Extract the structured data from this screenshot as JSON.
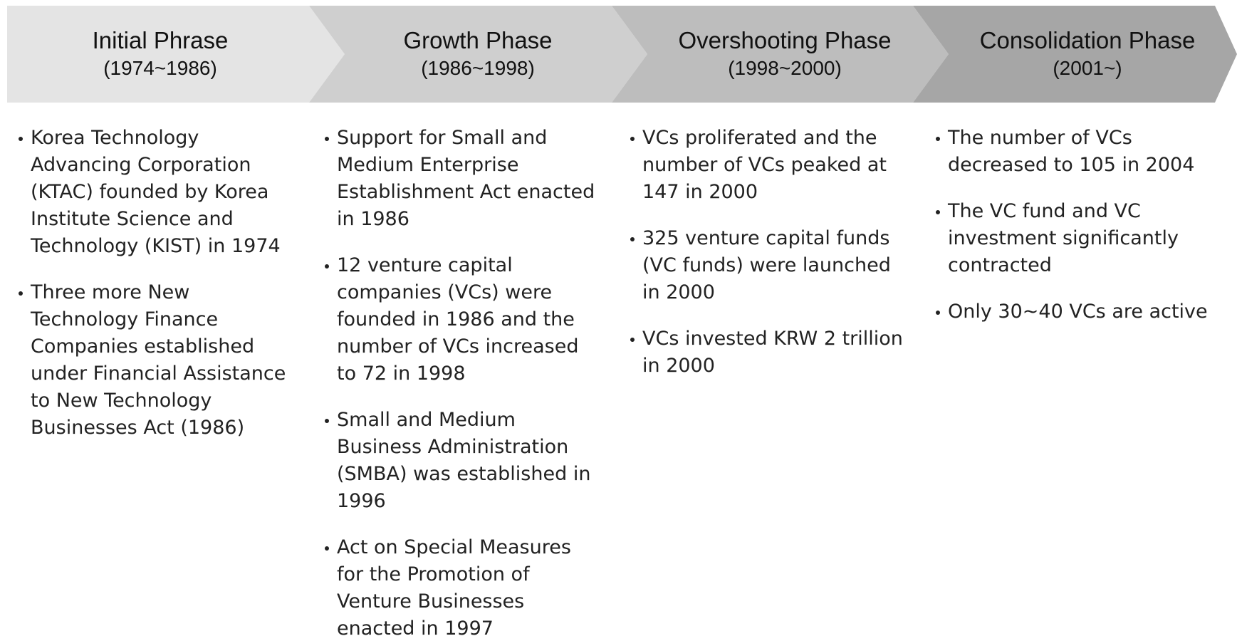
{
  "phases": [
    {
      "title": "Initial Phrase",
      "period": "(1974~1986)",
      "bullets": [
        "Korea Technology Advancing Corporation (KTAC) founded by Korea Institute Science and Technology (KIST) in 1974",
        "Three more New Technology Finance Companies established under Financial Assistance to New Technology Businesses Act (1986)"
      ]
    },
    {
      "title": "Growth Phase",
      "period": "(1986~1998)",
      "bullets": [
        "Support for Small and Medium Enterprise Establishment Act enacted in 1986",
        "12 venture capital companies (VCs) were founded in 1986 and the number of VCs increased to 72 in 1998",
        "Small and Medium Business Administration (SMBA) was established in 1996",
        "Act on Special Measures for the Promotion of Venture Businesses enacted in 1997"
      ]
    },
    {
      "title": "Overshooting Phase",
      "period": "(1998~2000)",
      "bullets": [
        "VCs proliferated and the number of VCs peaked at 147 in 2000",
        "325 venture capital funds (VC funds) were launched in 2000",
        "VCs invested KRW 2 trillion in 2000"
      ]
    },
    {
      "title": "Consolidation Phase",
      "period": "(2001~)",
      "bullets": [
        "The number of VCs decreased to 105 in 2004",
        "The VC fund and VC investment significantly contracted",
        "Only 30~40 VCs are active"
      ]
    }
  ]
}
